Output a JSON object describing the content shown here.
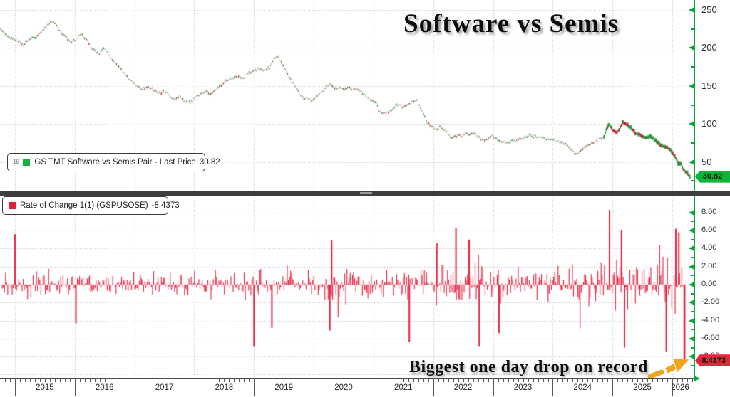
{
  "title": "Software vs Semis",
  "annotation": {
    "text": "Biggest one day drop on record",
    "arrow_icon": "orange-up-right-arrow",
    "arrow_color": "#f0a51e"
  },
  "panels": {
    "price": {
      "legend_expander": "⊞",
      "legend_label": "GS TMT Software vs Semis Pair - Last Price",
      "legend_value": "30.82",
      "tag_text": "30.82"
    },
    "roc": {
      "legend_label": "Rate of Change 1(1) (GSPUSOSE)",
      "legend_value": "-8.4373",
      "tag_text": "-8.4373"
    }
  },
  "colors": {
    "axis_green": "#0aa83c",
    "price_tag_bg": "#0db53a",
    "roc_red": "#e61e3c",
    "roc_tag_bg": "#e8243c",
    "gridline": "#b2b2b2",
    "label": "#2e3436",
    "separator": "#3e3e3e",
    "speck_red": "#a22c2c",
    "speck_green": "#23802d",
    "speck_gray": "#8d8d8d",
    "late_red": "#c3272f",
    "late_green": "#1d9e3c"
  },
  "chart_data": [
    {
      "type": "line",
      "name": "GS TMT Software vs Semis Pair - Last Price",
      "last_price": 30.82,
      "x_range": [
        2014.75,
        2026.35
      ],
      "x_ticks": [
        2015,
        2016,
        2017,
        2018,
        2019,
        2020,
        2021,
        2022,
        2023,
        2024,
        2025,
        2026
      ],
      "x_tick_labels": [
        "2015",
        "2016",
        "2017",
        "2018",
        "2019",
        "2020",
        "2021",
        "2022",
        "2023",
        "2024",
        "2025",
        "2026"
      ],
      "y_ticks": [
        250,
        200,
        150,
        100,
        50
      ],
      "y_tick_labels": [
        "250",
        "200",
        "150",
        "100",
        "50"
      ],
      "y_minor_ticks": [
        225,
        175,
        125,
        75,
        25
      ],
      "ylim": [
        13,
        263
      ],
      "grid": "dotted",
      "legend_position": "bottom-left",
      "noise_amplitude": 2.2,
      "points": [
        [
          2014.75,
          226
        ],
        [
          2014.89,
          214
        ],
        [
          2015.05,
          210
        ],
        [
          2015.14,
          204
        ],
        [
          2015.25,
          212
        ],
        [
          2015.35,
          214
        ],
        [
          2015.44,
          221
        ],
        [
          2015.52,
          228
        ],
        [
          2015.61,
          235
        ],
        [
          2015.68,
          233
        ],
        [
          2015.76,
          221
        ],
        [
          2015.86,
          214
        ],
        [
          2015.94,
          207
        ],
        [
          2016.03,
          212
        ],
        [
          2016.1,
          218
        ],
        [
          2016.21,
          210
        ],
        [
          2016.3,
          198
        ],
        [
          2016.4,
          191
        ],
        [
          2016.48,
          201
        ],
        [
          2016.56,
          193
        ],
        [
          2016.63,
          184
        ],
        [
          2016.72,
          177
        ],
        [
          2016.78,
          172
        ],
        [
          2016.87,
          162
        ],
        [
          2016.96,
          156
        ],
        [
          2017.05,
          149
        ],
        [
          2017.14,
          146
        ],
        [
          2017.23,
          149
        ],
        [
          2017.31,
          145
        ],
        [
          2017.4,
          140
        ],
        [
          2017.49,
          144
        ],
        [
          2017.59,
          137
        ],
        [
          2017.67,
          132
        ],
        [
          2017.76,
          136
        ],
        [
          2017.83,
          131
        ],
        [
          2017.91,
          128
        ],
        [
          2017.99,
          132
        ],
        [
          2018.09,
          139
        ],
        [
          2018.19,
          142
        ],
        [
          2018.27,
          139
        ],
        [
          2018.36,
          145
        ],
        [
          2018.45,
          151
        ],
        [
          2018.54,
          158
        ],
        [
          2018.63,
          160
        ],
        [
          2018.72,
          163
        ],
        [
          2018.81,
          160
        ],
        [
          2018.9,
          167
        ],
        [
          2018.98,
          170
        ],
        [
          2019.08,
          173
        ],
        [
          2019.16,
          170
        ],
        [
          2019.26,
          174
        ],
        [
          2019.34,
          187
        ],
        [
          2019.4,
          188
        ],
        [
          2019.46,
          181
        ],
        [
          2019.52,
          172
        ],
        [
          2019.58,
          163
        ],
        [
          2019.64,
          155
        ],
        [
          2019.7,
          147
        ],
        [
          2019.76,
          140
        ],
        [
          2019.84,
          132
        ],
        [
          2019.9,
          135
        ],
        [
          2019.96,
          130
        ],
        [
          2020.08,
          139
        ],
        [
          2020.14,
          142
        ],
        [
          2020.2,
          148
        ],
        [
          2020.26,
          153
        ],
        [
          2020.32,
          149
        ],
        [
          2020.38,
          146
        ],
        [
          2020.44,
          148
        ],
        [
          2020.51,
          145
        ],
        [
          2020.6,
          148
        ],
        [
          2020.68,
          145
        ],
        [
          2020.74,
          146
        ],
        [
          2020.8,
          142
        ],
        [
          2020.86,
          139
        ],
        [
          2020.92,
          134
        ],
        [
          2020.98,
          130
        ],
        [
          2021.04,
          128
        ],
        [
          2021.1,
          116
        ],
        [
          2021.19,
          114
        ],
        [
          2021.28,
          116
        ],
        [
          2021.35,
          123
        ],
        [
          2021.43,
          126
        ],
        [
          2021.51,
          121
        ],
        [
          2021.59,
          126
        ],
        [
          2021.67,
          130
        ],
        [
          2021.73,
          130
        ],
        [
          2021.79,
          120
        ],
        [
          2021.85,
          112
        ],
        [
          2021.91,
          102
        ],
        [
          2021.97,
          97
        ],
        [
          2022.06,
          92
        ],
        [
          2022.12,
          97
        ],
        [
          2022.18,
          92
        ],
        [
          2022.24,
          89
        ],
        [
          2022.3,
          81
        ],
        [
          2022.36,
          83
        ],
        [
          2022.42,
          86
        ],
        [
          2022.48,
          84
        ],
        [
          2022.54,
          88
        ],
        [
          2022.6,
          86
        ],
        [
          2022.66,
          88
        ],
        [
          2022.72,
          86
        ],
        [
          2022.78,
          81
        ],
        [
          2022.86,
          78
        ],
        [
          2022.92,
          80
        ],
        [
          2022.98,
          84
        ],
        [
          2023.1,
          79
        ],
        [
          2023.22,
          75
        ],
        [
          2023.34,
          78
        ],
        [
          2023.46,
          80
        ],
        [
          2023.61,
          85
        ],
        [
          2023.76,
          83
        ],
        [
          2023.94,
          80
        ],
        [
          2024.06,
          77
        ],
        [
          2024.17,
          76
        ],
        [
          2024.29,
          68
        ],
        [
          2024.38,
          61
        ],
        [
          2024.45,
          63
        ],
        [
          2024.53,
          69
        ],
        [
          2024.62,
          73
        ],
        [
          2024.69,
          76
        ],
        [
          2024.77,
          79
        ],
        [
          2024.86,
          83
        ],
        [
          2024.9,
          95
        ],
        [
          2024.95,
          99
        ],
        [
          2025.01,
          92
        ],
        [
          2025.07,
          88
        ],
        [
          2025.13,
          95
        ],
        [
          2025.17,
          103
        ],
        [
          2025.22,
          100
        ],
        [
          2025.31,
          94
        ],
        [
          2025.39,
          88
        ],
        [
          2025.49,
          84
        ],
        [
          2025.57,
          81
        ],
        [
          2025.64,
          84
        ],
        [
          2025.72,
          78
        ],
        [
          2025.81,
          72
        ],
        [
          2025.88,
          70
        ],
        [
          2025.96,
          66
        ],
        [
          2026.02,
          60
        ],
        [
          2026.08,
          52
        ],
        [
          2026.11,
          47
        ],
        [
          2026.14,
          49
        ],
        [
          2026.18,
          41
        ],
        [
          2026.22,
          37
        ],
        [
          2026.27,
          33
        ],
        [
          2026.3,
          30.82
        ]
      ]
    },
    {
      "type": "bar",
      "name": "Rate of Change 1(1) (GSPUSOSE)",
      "last_value": -8.4373,
      "y_ticks": [
        8,
        6,
        4,
        2,
        0,
        -2,
        -4,
        -6,
        -8
      ],
      "y_tick_labels": [
        "8.00",
        "6.00",
        "4.00",
        "2.00",
        "0.00",
        "-2.00",
        "-4.00",
        "-6.00",
        "-8.00"
      ],
      "y_minor_ticks": [
        7,
        5,
        3,
        1,
        -1,
        -3,
        -5,
        -7,
        -9
      ],
      "ylim": [
        -10,
        10
      ],
      "grid": "dotted",
      "legend_position": "top-left",
      "volatility_envelope": [
        [
          2014.78,
          1.15
        ],
        [
          2016.0,
          1.0
        ],
        [
          2018.0,
          1.05
        ],
        [
          2018.9,
          1.35
        ],
        [
          2019.5,
          1.0
        ],
        [
          2020.2,
          1.7
        ],
        [
          2020.8,
          1.25
        ],
        [
          2021.4,
          1.2
        ],
        [
          2021.8,
          1.6
        ],
        [
          2022.5,
          1.7
        ],
        [
          2023.2,
          1.35
        ],
        [
          2024.3,
          1.5
        ],
        [
          2024.9,
          2.0
        ],
        [
          2025.5,
          2.1
        ],
        [
          2026.2,
          2.3
        ]
      ],
      "notable_bars": [
        [
          2015.0,
          5.6
        ],
        [
          2016.02,
          -4.3
        ],
        [
          2019.0,
          -6.9
        ],
        [
          2019.3,
          -4.8
        ],
        [
          2020.27,
          -5.1
        ],
        [
          2020.3,
          4.9
        ],
        [
          2021.6,
          -6.4
        ],
        [
          2022.06,
          4.6
        ],
        [
          2022.38,
          6.3
        ],
        [
          2022.6,
          5.0
        ],
        [
          2022.77,
          -6.9
        ],
        [
          2023.1,
          -5.4
        ],
        [
          2024.95,
          8.3
        ],
        [
          2025.15,
          6.1
        ],
        [
          2025.2,
          -7.0
        ],
        [
          2025.9,
          -7.5
        ],
        [
          2026.06,
          6.2
        ],
        [
          2026.11,
          5.8
        ],
        [
          2026.2,
          -8.4373
        ]
      ]
    }
  ]
}
